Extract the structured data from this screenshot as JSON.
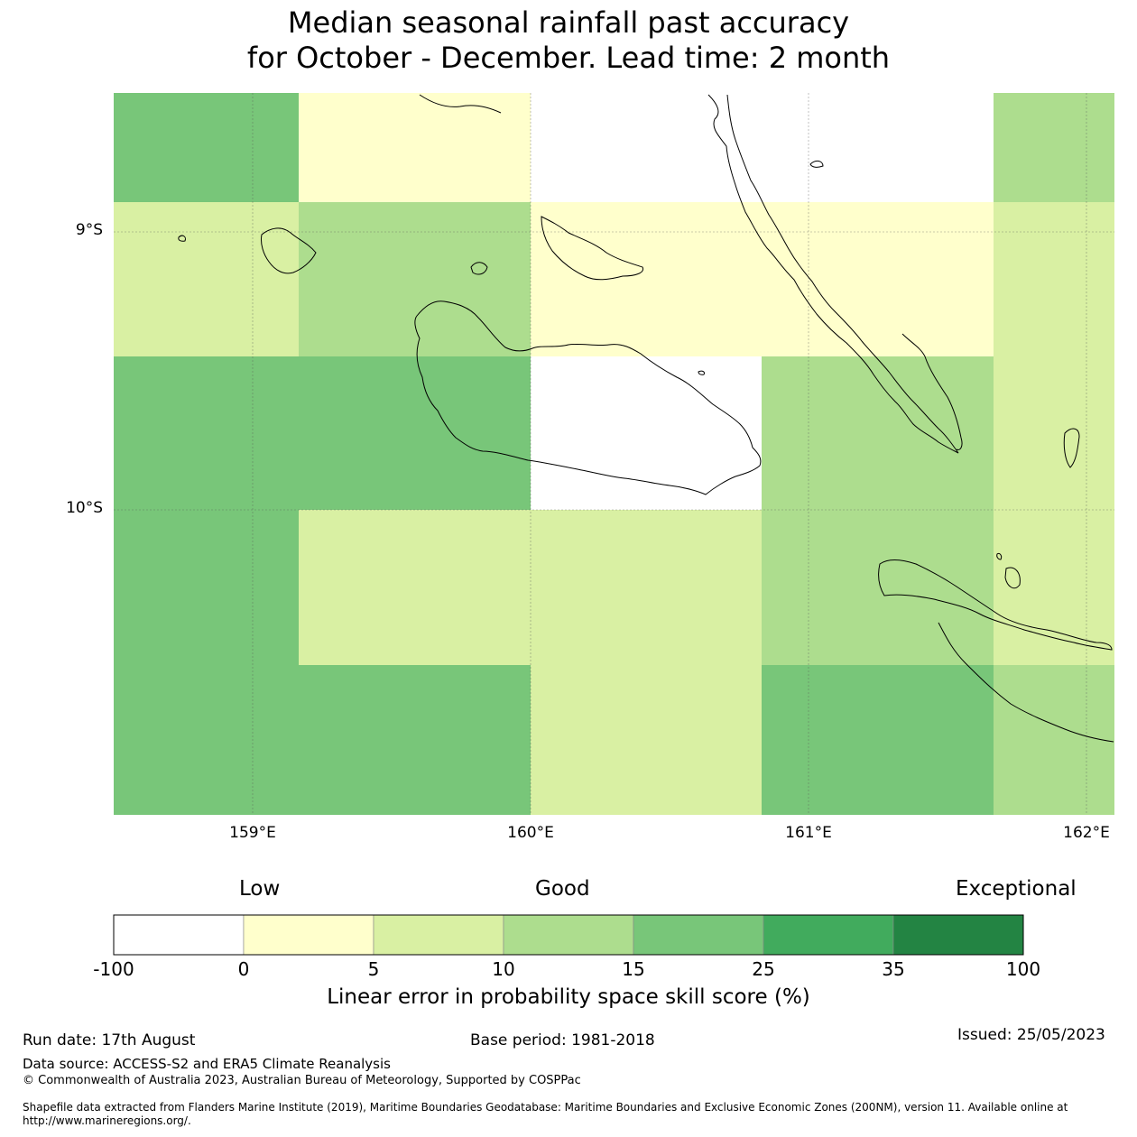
{
  "title": {
    "line1": "Median seasonal rainfall past accuracy",
    "line2": "for October - December. Lead time: 2 month"
  },
  "map": {
    "lat_labels": [
      "9°S",
      "10°S"
    ],
    "lon_labels": [
      "159°E",
      "160°E",
      "161°E",
      "162°E"
    ],
    "grid_skill_bins": [
      [
        "15-25",
        "0-5",
        "-100-0",
        "-100-0",
        "10-15"
      ],
      [
        "5-10",
        "10-15",
        "0-5",
        "0-5",
        "5-10"
      ],
      [
        "15-25",
        "15-25",
        "-100-0",
        "10-15",
        "5-10"
      ],
      [
        "15-25",
        "5-10",
        "5-10",
        "10-15",
        "5-10"
      ],
      [
        "15-25",
        "15-25",
        "5-10",
        "15-25",
        "10-15"
      ]
    ]
  },
  "colorbar": {
    "words": [
      "Low",
      "Good",
      "Exceptional"
    ],
    "ticks": [
      "-100",
      "0",
      "5",
      "10",
      "15",
      "25",
      "35",
      "100"
    ],
    "colors": [
      "#ffffff",
      "#ffffcc",
      "#d9f0a3",
      "#addd8e",
      "#78c679",
      "#41ab5d",
      "#238443"
    ],
    "label": "Linear error in probability space skill score (%)"
  },
  "footer": {
    "run_date": "Run date: 17th August",
    "base_period": "Base period: 1981-2018",
    "issued": "Issued: 25/05/2023",
    "data_source": "Data source: ACCESS-S2 and ERA5 Climate Reanalysis",
    "copyright": "© Commonwealth of Australia 2023, Australian Bureau of Meteorology, Supported by COSPPac",
    "shapefile": "Shapefile data extracted from Flanders Marine Institute (2019), Maritime Boundaries Geodatabase: Maritime Boundaries and Exclusive Economic Zones (200NM), version 11. Available online at http://www.marineregions.org/."
  }
}
